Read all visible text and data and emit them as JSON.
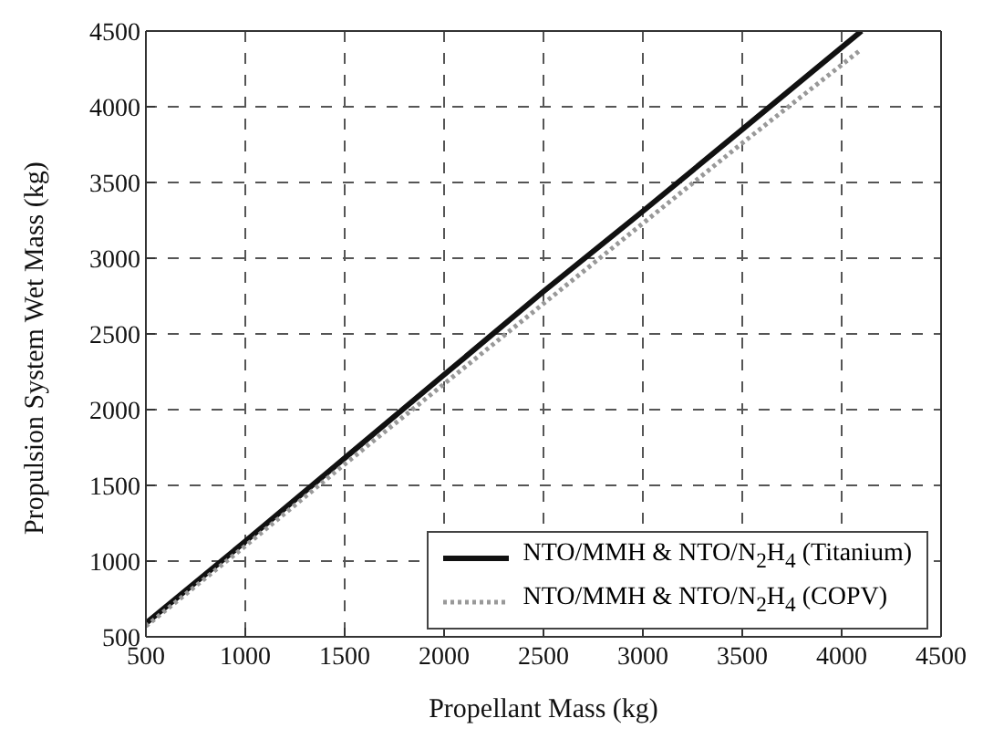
{
  "chart_data": {
    "type": "line",
    "xlabel": "Propellant Mass (kg)",
    "ylabel": "Propulsion System Wet Mass (kg)",
    "xlim": [
      500,
      4500
    ],
    "xticks": [
      500,
      1000,
      1500,
      2000,
      2500,
      3000,
      3500,
      4000,
      4500
    ],
    "ylim": [
      500,
      4500
    ],
    "yticks": [
      500,
      1000,
      1500,
      2000,
      2500,
      3000,
      3500,
      4000,
      4500
    ],
    "grid": true,
    "legend": "bottom right",
    "marker": "none",
    "series": [
      {
        "name": "NTO/MMH & NTO/N$_{2}$H$_{4}$ (Titanium)",
        "color": "#111111",
        "line_style": "solid",
        "x": [
          500,
          1000,
          1500,
          2000,
          2500,
          3000,
          3500,
          4100
        ],
        "values": [
          590,
          1130,
          1680,
          2230,
          2780,
          3310,
          3850,
          4500
        ]
      },
      {
        "name": "NTO/MMH & NTO/N$_{2}$H$_{4}$ (COPV)",
        "color": "#999999",
        "line_style": "dotted",
        "x": [
          500,
          1000,
          1500,
          2000,
          2500,
          3000,
          3500,
          4100
        ],
        "values": [
          570,
          1100,
          1640,
          2170,
          2700,
          3230,
          3760,
          4380
        ]
      }
    ]
  }
}
